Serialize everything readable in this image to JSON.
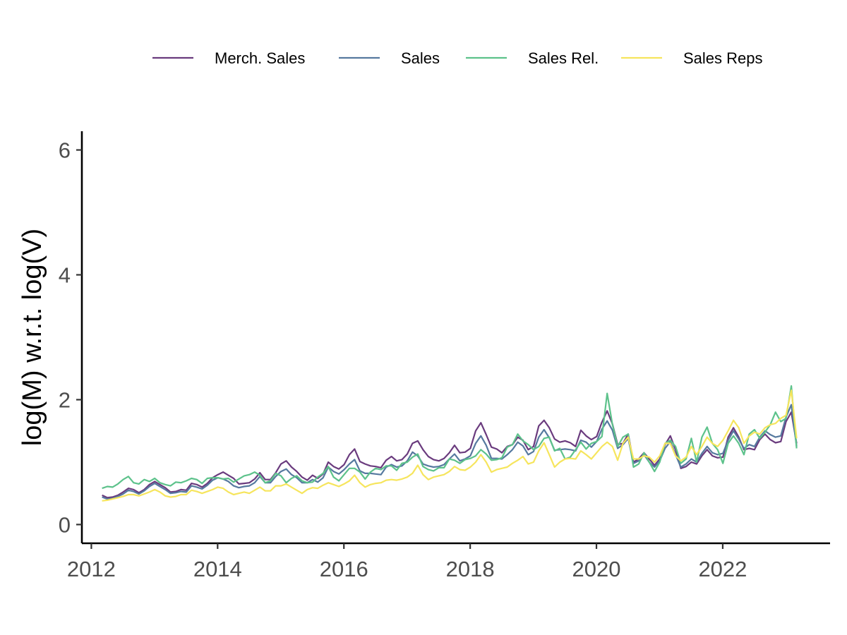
{
  "chart_data": {
    "type": "line",
    "title": "",
    "xlabel": "",
    "ylabel": "log(M) w.r.t. log(V)",
    "xlim": [
      2011.85,
      2023.7
    ],
    "ylim": [
      -0.3,
      6.3
    ],
    "x_ticks": [
      2012,
      2014,
      2016,
      2018,
      2020,
      2022
    ],
    "x_tick_labels": [
      "2012",
      "2014",
      "2016",
      "2018",
      "2020",
      "2022"
    ],
    "y_ticks": [
      0,
      2,
      4,
      6
    ],
    "y_tick_labels": [
      "0",
      "2",
      "4",
      "6"
    ],
    "grid": false,
    "legend_position": "top",
    "x_start": 2012.17,
    "x_step": 0.08333,
    "series": [
      {
        "name": "Merch. Sales",
        "color": "#6a3b7e",
        "values": [
          0.47,
          0.43,
          0.44,
          0.47,
          0.52,
          0.58,
          0.56,
          0.51,
          0.56,
          0.64,
          0.69,
          0.64,
          0.59,
          0.52,
          0.53,
          0.56,
          0.55,
          0.66,
          0.64,
          0.6,
          0.66,
          0.75,
          0.8,
          0.84,
          0.79,
          0.74,
          0.65,
          0.66,
          0.67,
          0.73,
          0.83,
          0.72,
          0.72,
          0.83,
          0.97,
          1.02,
          0.92,
          0.85,
          0.76,
          0.71,
          0.79,
          0.74,
          0.81,
          1.0,
          0.93,
          0.89,
          0.96,
          1.12,
          1.21,
          1.01,
          0.97,
          0.94,
          0.93,
          0.91,
          1.03,
          1.09,
          1.02,
          1.04,
          1.13,
          1.3,
          1.34,
          1.2,
          1.09,
          1.04,
          1.02,
          1.06,
          1.15,
          1.27,
          1.15,
          1.16,
          1.22,
          1.5,
          1.63,
          1.44,
          1.24,
          1.21,
          1.15,
          1.25,
          1.28,
          1.4,
          1.35,
          1.2,
          1.25,
          1.58,
          1.67,
          1.55,
          1.37,
          1.32,
          1.34,
          1.31,
          1.25,
          1.51,
          1.42,
          1.36,
          1.41,
          1.64,
          1.82,
          1.61,
          1.28,
          1.3,
          1.45,
          1.0,
          1.05,
          1.15,
          1.05,
          0.95,
          1.05,
          1.28,
          1.42,
          1.2,
          0.9,
          0.93,
          1.0,
          0.97,
          1.1,
          1.2,
          1.1,
          1.07,
          1.08,
          1.4,
          1.55,
          1.4,
          1.2,
          1.22,
          1.2,
          1.36,
          1.45,
          1.36,
          1.31,
          1.33,
          1.65,
          1.8,
          1.3
        ]
      },
      {
        "name": "Sales",
        "color": "#56799f",
        "values": [
          0.44,
          0.41,
          0.42,
          0.45,
          0.49,
          0.55,
          0.53,
          0.49,
          0.54,
          0.61,
          0.66,
          0.61,
          0.56,
          0.5,
          0.51,
          0.53,
          0.52,
          0.62,
          0.6,
          0.57,
          0.63,
          0.71,
          0.75,
          0.73,
          0.69,
          0.62,
          0.59,
          0.61,
          0.62,
          0.67,
          0.77,
          0.67,
          0.67,
          0.77,
          0.85,
          0.89,
          0.8,
          0.75,
          0.67,
          0.67,
          0.72,
          0.68,
          0.75,
          0.92,
          0.85,
          0.81,
          0.88,
          0.97,
          1.04,
          0.86,
          0.82,
          0.82,
          0.81,
          0.8,
          0.92,
          0.96,
          0.92,
          0.94,
          1.02,
          1.16,
          1.1,
          0.97,
          0.94,
          0.92,
          0.93,
          0.96,
          1.05,
          1.13,
          1.02,
          1.05,
          1.1,
          1.3,
          1.42,
          1.27,
          1.06,
          1.06,
          1.05,
          1.12,
          1.2,
          1.32,
          1.26,
          1.12,
          1.17,
          1.4,
          1.52,
          1.39,
          1.19,
          1.2,
          1.21,
          1.2,
          1.18,
          1.35,
          1.32,
          1.24,
          1.33,
          1.53,
          1.66,
          1.51,
          1.22,
          1.28,
          1.38,
          0.98,
          1.02,
          1.12,
          1.0,
          0.92,
          1.02,
          1.22,
          1.33,
          1.12,
          0.92,
          0.97,
          1.05,
          1.0,
          1.14,
          1.25,
          1.15,
          1.12,
          1.14,
          1.35,
          1.5,
          1.37,
          1.22,
          1.28,
          1.25,
          1.4,
          1.5,
          1.44,
          1.4,
          1.42,
          1.72,
          1.92,
          1.25
        ]
      },
      {
        "name": "Sales Rel.",
        "color": "#5dc28b",
        "values": [
          0.58,
          0.61,
          0.6,
          0.65,
          0.72,
          0.77,
          0.67,
          0.65,
          0.72,
          0.69,
          0.74,
          0.67,
          0.64,
          0.62,
          0.68,
          0.67,
          0.7,
          0.74,
          0.72,
          0.66,
          0.74,
          0.75,
          0.75,
          0.73,
          0.74,
          0.68,
          0.73,
          0.78,
          0.8,
          0.84,
          0.79,
          0.67,
          0.7,
          0.82,
          0.78,
          0.67,
          0.74,
          0.78,
          0.7,
          0.67,
          0.68,
          0.76,
          0.82,
          0.93,
          0.76,
          0.7,
          0.8,
          0.9,
          0.9,
          0.84,
          0.73,
          0.84,
          0.9,
          0.88,
          0.94,
          0.94,
          0.87,
          0.98,
          1.0,
          1.08,
          1.13,
          0.93,
          0.88,
          0.86,
          0.91,
          0.91,
          1.05,
          1.03,
          0.98,
          1.04,
          1.06,
          1.1,
          1.2,
          1.13,
          1.03,
          1.04,
          1.07,
          1.24,
          1.28,
          1.45,
          1.34,
          1.28,
          1.2,
          1.25,
          1.38,
          1.4,
          1.18,
          1.22,
          1.05,
          1.08,
          1.2,
          1.32,
          1.21,
          1.3,
          1.33,
          1.41,
          2.1,
          1.6,
          1.25,
          1.4,
          1.45,
          0.92,
          0.97,
          1.15,
          1.0,
          0.85,
          1.0,
          1.3,
          1.35,
          1.25,
          0.98,
          1.05,
          1.38,
          1.0,
          1.4,
          1.56,
          1.3,
          1.2,
          0.98,
          1.3,
          1.42,
          1.3,
          1.12,
          1.45,
          1.52,
          1.38,
          1.48,
          1.6,
          1.8,
          1.65,
          1.7,
          2.22,
          1.22
        ]
      },
      {
        "name": "Sales Reps",
        "color": "#f6e55d",
        "values": [
          0.38,
          0.39,
          0.41,
          0.43,
          0.45,
          0.48,
          0.48,
          0.46,
          0.49,
          0.52,
          0.56,
          0.52,
          0.46,
          0.44,
          0.45,
          0.48,
          0.48,
          0.55,
          0.53,
          0.5,
          0.53,
          0.56,
          0.6,
          0.58,
          0.52,
          0.48,
          0.5,
          0.52,
          0.5,
          0.55,
          0.6,
          0.54,
          0.54,
          0.62,
          0.62,
          0.65,
          0.6,
          0.55,
          0.5,
          0.56,
          0.59,
          0.58,
          0.63,
          0.67,
          0.64,
          0.61,
          0.65,
          0.7,
          0.79,
          0.67,
          0.6,
          0.64,
          0.66,
          0.67,
          0.71,
          0.72,
          0.71,
          0.73,
          0.76,
          0.82,
          0.95,
          0.8,
          0.72,
          0.76,
          0.78,
          0.8,
          0.85,
          0.93,
          0.88,
          0.87,
          0.92,
          1.0,
          1.12,
          1.0,
          0.84,
          0.88,
          0.9,
          0.92,
          0.98,
          1.03,
          1.09,
          0.97,
          1.0,
          1.18,
          1.31,
          1.12,
          0.92,
          1.0,
          1.05,
          1.06,
          1.05,
          1.18,
          1.12,
          1.05,
          1.15,
          1.25,
          1.32,
          1.25,
          1.03,
          1.3,
          1.4,
          1.05,
          1.05,
          1.1,
          1.08,
          1.0,
          1.1,
          1.3,
          1.3,
          1.1,
          1.02,
          1.08,
          1.25,
          1.12,
          1.25,
          1.4,
          1.3,
          1.25,
          1.35,
          1.5,
          1.67,
          1.55,
          1.3,
          1.42,
          1.48,
          1.45,
          1.55,
          1.6,
          1.62,
          1.7,
          1.75,
          2.15,
          1.38
        ]
      }
    ]
  }
}
